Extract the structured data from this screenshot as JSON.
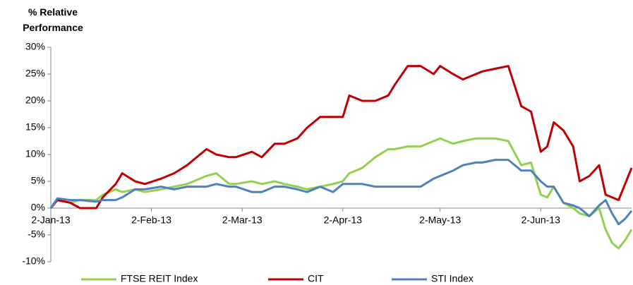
{
  "chart_data": {
    "type": "line",
    "y_label": "% Relative Performance",
    "x": [
      "2013-01-02",
      "2013-01-04",
      "2013-01-08",
      "2013-01-11",
      "2013-01-16",
      "2013-01-18",
      "2013-01-22",
      "2013-01-24",
      "2013-01-28",
      "2013-01-31",
      "2013-02-05",
      "2013-02-09",
      "2013-02-13",
      "2013-02-19",
      "2013-02-22",
      "2013-02-26",
      "2013-02-28",
      "2013-03-05",
      "2013-03-08",
      "2013-03-12",
      "2013-03-15",
      "2013-03-19",
      "2013-03-22",
      "2013-03-26",
      "2013-03-30",
      "2013-04-02",
      "2013-04-04",
      "2013-04-08",
      "2013-04-12",
      "2013-04-16",
      "2013-04-18",
      "2013-04-22",
      "2013-04-26",
      "2013-04-30",
      "2013-05-02",
      "2013-05-06",
      "2013-05-09",
      "2013-05-13",
      "2013-05-15",
      "2013-05-19",
      "2013-05-23",
      "2013-05-27",
      "2013-05-30",
      "2013-06-02",
      "2013-06-04",
      "2013-06-06",
      "2013-06-09",
      "2013-06-12",
      "2013-06-14",
      "2013-06-17",
      "2013-06-20",
      "2013-06-22",
      "2013-06-24",
      "2013-06-26",
      "2013-06-28",
      "2013-06-30"
    ],
    "series": [
      {
        "name": "FTSE REIT Index",
        "color": "#92d050",
        "values": [
          0,
          1.5,
          1,
          1.5,
          1.5,
          2.5,
          3.5,
          3,
          3.5,
          3,
          3.5,
          4,
          4.5,
          6,
          6.5,
          4.5,
          4.5,
          5,
          4.5,
          5,
          4.5,
          4,
          3.5,
          4,
          4.5,
          5,
          6.5,
          7.5,
          9.5,
          11,
          11,
          11.5,
          11.5,
          12.5,
          13,
          12,
          12.5,
          13,
          13,
          13,
          12.5,
          8,
          8.5,
          2.5,
          2,
          4,
          1,
          0,
          -1,
          -1.5,
          0,
          -4,
          -6.5,
          -7.5,
          -6,
          -4
        ]
      },
      {
        "name": "CIT",
        "color": "#c00000",
        "values": [
          0,
          1.5,
          1,
          0,
          0,
          2,
          4.5,
          6.5,
          5,
          4.5,
          5.5,
          6.5,
          8,
          11,
          10,
          9.5,
          9.5,
          10.5,
          9.5,
          12,
          12,
          13,
          15,
          17,
          17,
          17,
          21,
          20,
          20,
          21,
          23,
          26.5,
          26.5,
          25,
          26.5,
          25,
          24,
          25,
          25.5,
          26,
          26.5,
          19,
          18,
          10.5,
          11.5,
          16,
          14.5,
          11.5,
          5,
          6,
          8,
          2.5,
          2,
          1.5,
          4.5,
          7.5
        ]
      },
      {
        "name": "STI Index",
        "color": "#4f81bd",
        "values": [
          0,
          1.8,
          1.5,
          1.5,
          1.2,
          1.5,
          1.5,
          2,
          3.5,
          3.5,
          4,
          3.5,
          4,
          4,
          4.5,
          4,
          4,
          3,
          3,
          4,
          4,
          3.5,
          3,
          4,
          3,
          4.5,
          4.5,
          4.5,
          4,
          4,
          4,
          4,
          4,
          5.5,
          6,
          7,
          8,
          8.5,
          8.5,
          9,
          9,
          7,
          7,
          5,
          4,
          4,
          1,
          0.5,
          0,
          -1.5,
          0.5,
          1.5,
          -1,
          -3,
          -2,
          -0.5
        ]
      }
    ],
    "xlim": [
      "2013-01-02",
      "2013-06-30"
    ],
    "xticks": [
      {
        "value": "2013-01-02",
        "label": "2-Jan-13"
      },
      {
        "value": "2013-02-02",
        "label": "2-Feb-13"
      },
      {
        "value": "2013-03-02",
        "label": "2-Mar-13"
      },
      {
        "value": "2013-04-02",
        "label": "2-Apr-13"
      },
      {
        "value": "2013-05-02",
        "label": "2-May-13"
      },
      {
        "value": "2013-06-02",
        "label": "2-Jun-13"
      }
    ],
    "ylim": [
      -10,
      30
    ],
    "yticks": [
      {
        "value": -10,
        "label": "-10%"
      },
      {
        "value": -5,
        "label": "-5%"
      },
      {
        "value": 0,
        "label": "0%"
      },
      {
        "value": 5,
        "label": "5%"
      },
      {
        "value": 10,
        "label": "10%"
      },
      {
        "value": 15,
        "label": "15%"
      },
      {
        "value": 20,
        "label": "20%"
      },
      {
        "value": 25,
        "label": "25%"
      },
      {
        "value": 30,
        "label": "30%"
      }
    ],
    "grid": false,
    "legend": "bottom"
  }
}
